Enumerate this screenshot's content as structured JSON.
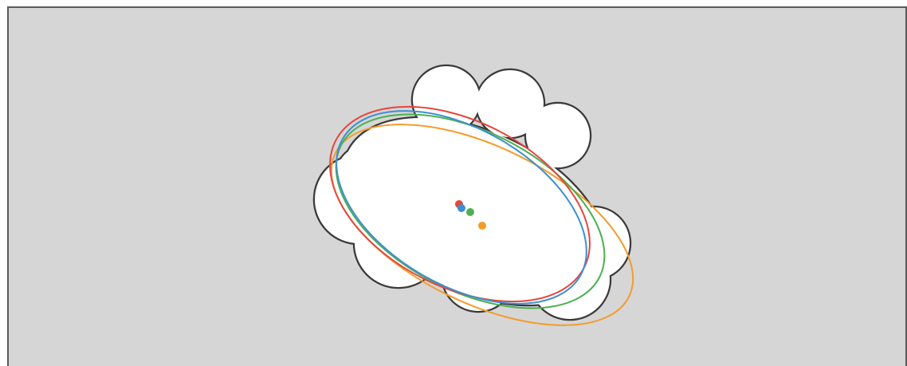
{
  "canvas": {
    "background": "#d6d6d6",
    "frame_color": "#5a5a5a"
  },
  "shape": {
    "fill": "#ffffff",
    "stroke": "#3a3a3a"
  },
  "ellipses": [
    {
      "key": "red",
      "color": "#e8453c"
    },
    {
      "key": "blue",
      "color": "#3d8fd1"
    },
    {
      "key": "green",
      "color": "#4caf50"
    },
    {
      "key": "orange",
      "color": "#f39c2b"
    }
  ]
}
